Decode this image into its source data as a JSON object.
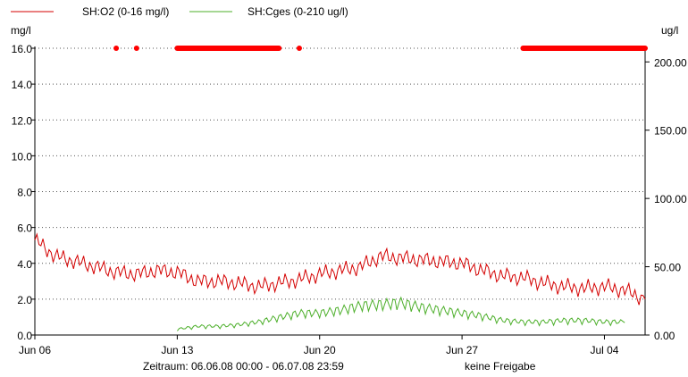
{
  "chart_data": {
    "type": "line",
    "left_unit": "mg/l",
    "right_unit": "ug/l",
    "legend": [
      {
        "name": "SH:O2 (0-16 mg/l)",
        "color": "#d40000"
      },
      {
        "name": "SH:Cges (0-210 ug/l)",
        "color": "#4caf2a"
      }
    ],
    "y_left": {
      "min": 0,
      "max": 16,
      "ticks": [
        "0.0",
        "2.0",
        "4.0",
        "6.0",
        "8.0",
        "10.0",
        "12.0",
        "14.0",
        "16.0"
      ]
    },
    "y_right": {
      "min": 0,
      "max": 210,
      "ticks": [
        "0.00",
        "50.00",
        "100.00",
        "150.00",
        "200.00"
      ]
    },
    "x_axis": {
      "start": "2008-06-06",
      "end": "2008-07-06",
      "ticks": [
        {
          "label": "Jun 06",
          "date": "2008-06-06"
        },
        {
          "label": "Jun 13",
          "date": "2008-06-13"
        },
        {
          "label": "Jun 20",
          "date": "2008-06-20"
        },
        {
          "label": "Jun 27",
          "date": "2008-06-27"
        },
        {
          "label": "Jul 04",
          "date": "2008-07-04"
        }
      ]
    },
    "grid": true,
    "series": [
      {
        "name": "SH:O2 (0-16 mg/l)",
        "axis": "left",
        "color": "#d40000",
        "points": [
          [
            "2008-06-06",
            5.3
          ],
          [
            "2008-06-07",
            4.4
          ],
          [
            "2008-06-08",
            4.1
          ],
          [
            "2008-06-09",
            3.8
          ],
          [
            "2008-06-10",
            3.5
          ],
          [
            "2008-06-11",
            3.4
          ],
          [
            "2008-06-12",
            3.6
          ],
          [
            "2008-06-13",
            3.5
          ],
          [
            "2008-06-14",
            3.0
          ],
          [
            "2008-06-15",
            3.0
          ],
          [
            "2008-06-16",
            2.9
          ],
          [
            "2008-06-17",
            2.7
          ],
          [
            "2008-06-18",
            2.9
          ],
          [
            "2008-06-19",
            3.1
          ],
          [
            "2008-06-20",
            3.4
          ],
          [
            "2008-06-21",
            3.6
          ],
          [
            "2008-06-22",
            3.8
          ],
          [
            "2008-06-23",
            4.4
          ],
          [
            "2008-06-24",
            4.3
          ],
          [
            "2008-06-25",
            4.2
          ],
          [
            "2008-06-26",
            4.1
          ],
          [
            "2008-06-27",
            4.0
          ],
          [
            "2008-06-28",
            3.6
          ],
          [
            "2008-06-29",
            3.3
          ],
          [
            "2008-06-30",
            3.2
          ],
          [
            "2008-07-01",
            2.9
          ],
          [
            "2008-07-02",
            2.7
          ],
          [
            "2008-07-03",
            2.6
          ],
          [
            "2008-07-04",
            2.7
          ],
          [
            "2008-07-05",
            2.5
          ],
          [
            "2008-07-06",
            2.0
          ]
        ]
      },
      {
        "name": "SH:Cges (0-210 ug/l)",
        "axis": "right",
        "color": "#4caf2a",
        "points": [
          [
            "2008-06-13",
            4
          ],
          [
            "2008-06-14",
            6
          ],
          [
            "2008-06-15",
            6
          ],
          [
            "2008-06-16",
            7
          ],
          [
            "2008-06-17",
            9
          ],
          [
            "2008-06-18",
            12
          ],
          [
            "2008-06-19",
            15
          ],
          [
            "2008-06-20",
            15
          ],
          [
            "2008-06-21",
            17
          ],
          [
            "2008-06-22",
            20
          ],
          [
            "2008-06-23",
            21
          ],
          [
            "2008-06-24",
            22
          ],
          [
            "2008-06-25",
            19
          ],
          [
            "2008-06-26",
            17
          ],
          [
            "2008-06-27",
            15
          ],
          [
            "2008-06-28",
            13
          ],
          [
            "2008-06-29",
            10
          ],
          [
            "2008-06-30",
            9
          ],
          [
            "2008-07-01",
            9
          ],
          [
            "2008-07-02",
            10
          ],
          [
            "2008-07-03",
            10
          ],
          [
            "2008-07-04",
            9
          ],
          [
            "2008-07-05",
            9
          ]
        ]
      }
    ],
    "status_markers": {
      "color": "#ff0000",
      "value": 16,
      "ranges": [
        [
          "2008-06-10",
          "2008-06-10"
        ],
        [
          "2008-06-11",
          "2008-06-11"
        ],
        [
          "2008-06-13",
          "2008-06-18"
        ],
        [
          "2008-06-19",
          "2008-06-19"
        ],
        [
          "2008-06-30",
          "2008-07-06"
        ]
      ]
    },
    "footer": {
      "period": "Zeitraum: 06.06.08 00:00 - 06.07.08 23:59",
      "status": "keine Freigabe"
    }
  }
}
